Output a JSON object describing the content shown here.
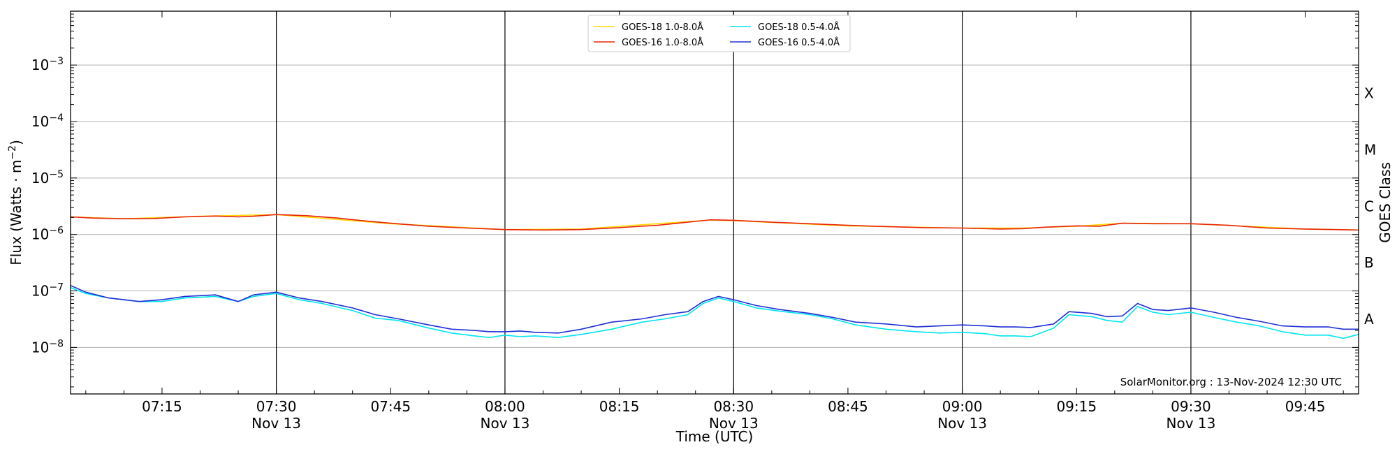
{
  "chart_data": {
    "type": "line",
    "xlabel": "Time (UTC)",
    "ylabel": "Flux (Watts · m",
    "ylabel_sup": "−2",
    "ylabel_close": ")",
    "right_label": "GOES Class",
    "credit": "SolarMonitor.org : 13-Nov-2024 12:30 UTC",
    "y_scale": "log",
    "ylim": [
      1.5e-09,
      0.009
    ],
    "xlim": [
      "07:03",
      "09:52"
    ],
    "grid": "horizontal",
    "legend_position": "top-center",
    "y_ticks": [
      {
        "value": 1e-08,
        "base": "10",
        "exp": "−8"
      },
      {
        "value": 1e-07,
        "base": "10",
        "exp": "−7"
      },
      {
        "value": 1e-06,
        "base": "10",
        "exp": "−6"
      },
      {
        "value": 1e-05,
        "base": "10",
        "exp": "−5"
      },
      {
        "value": 0.0001,
        "base": "10",
        "exp": "−4"
      },
      {
        "value": 0.001,
        "base": "10",
        "exp": "−3"
      }
    ],
    "x_ticks": [
      {
        "time": "07:15",
        "label": "07:15",
        "sublabel": ""
      },
      {
        "time": "07:30",
        "label": "07:30",
        "sublabel": "Nov 13"
      },
      {
        "time": "07:45",
        "label": "07:45",
        "sublabel": ""
      },
      {
        "time": "08:00",
        "label": "08:00",
        "sublabel": "Nov 13"
      },
      {
        "time": "08:15",
        "label": "08:15",
        "sublabel": ""
      },
      {
        "time": "08:30",
        "label": "08:30",
        "sublabel": "Nov 13"
      },
      {
        "time": "08:45",
        "label": "08:45",
        "sublabel": ""
      },
      {
        "time": "09:00",
        "label": "09:00",
        "sublabel": "Nov 13"
      },
      {
        "time": "09:15",
        "label": "09:15",
        "sublabel": ""
      },
      {
        "time": "09:30",
        "label": "09:30",
        "sublabel": "Nov 13"
      },
      {
        "time": "09:45",
        "label": "09:45",
        "sublabel": ""
      }
    ],
    "vlines": [
      "07:30",
      "08:00",
      "08:30",
      "09:00",
      "09:30"
    ],
    "goes_classes": [
      {
        "label": "A",
        "value": 3.16e-08
      },
      {
        "label": "B",
        "value": 3.16e-07
      },
      {
        "label": "C",
        "value": 3.16e-06
      },
      {
        "label": "M",
        "value": 3.16e-05
      },
      {
        "label": "X",
        "value": 0.000316
      }
    ],
    "series": [
      {
        "name": "GOES-18 1.0-8.0Å",
        "color": "#ffd700",
        "x": [
          "07:03",
          "07:10",
          "07:20",
          "07:30",
          "07:45",
          "08:00",
          "08:10",
          "08:20",
          "08:27",
          "08:30",
          "08:45",
          "09:00",
          "09:08",
          "09:15",
          "09:21",
          "09:30",
          "09:45",
          "09:52"
        ],
        "y": [
          2.05e-06,
          1.9e-06,
          2.1e-06,
          2.25e-06,
          1.55e-06,
          1.22e-06,
          1.25e-06,
          1.55e-06,
          1.8e-06,
          1.75e-06,
          1.42e-06,
          1.3e-06,
          1.3e-06,
          1.4e-06,
          1.58e-06,
          1.55e-06,
          1.25e-06,
          1.2e-06
        ]
      },
      {
        "name": "GOES-16 1.0-8.0Å",
        "color": "#e8250a",
        "x": [
          "07:03",
          "07:06",
          "07:10",
          "07:14",
          "07:18",
          "07:22",
          "07:25",
          "07:27",
          "07:30",
          "07:34",
          "07:38",
          "07:42",
          "07:45",
          "07:50",
          "07:55",
          "08:00",
          "08:05",
          "08:10",
          "08:15",
          "08:20",
          "08:24",
          "08:27",
          "08:30",
          "08:35",
          "08:40",
          "08:45",
          "08:50",
          "08:55",
          "09:00",
          "09:05",
          "09:08",
          "09:11",
          "09:15",
          "09:18",
          "09:21",
          "09:25",
          "09:30",
          "09:35",
          "09:40",
          "09:45",
          "09:52"
        ],
        "y": [
          2.05e-06,
          1.95e-06,
          1.9e-06,
          1.92e-06,
          2.05e-06,
          2.12e-06,
          2.05e-06,
          2.1e-06,
          2.25e-06,
          2.15e-06,
          1.95e-06,
          1.72e-06,
          1.58e-06,
          1.4e-06,
          1.3e-06,
          1.22e-06,
          1.2e-06,
          1.22e-06,
          1.32e-06,
          1.45e-06,
          1.65e-06,
          1.82e-06,
          1.78e-06,
          1.65e-06,
          1.55e-06,
          1.45e-06,
          1.38e-06,
          1.32e-06,
          1.3e-06,
          1.25e-06,
          1.27e-06,
          1.35e-06,
          1.42e-06,
          1.4e-06,
          1.58e-06,
          1.55e-06,
          1.55e-06,
          1.45e-06,
          1.3e-06,
          1.25e-06,
          1.2e-06
        ]
      },
      {
        "name": "GOES-18 0.5-4.0Å",
        "color": "#00e5ee",
        "x": [
          "07:03",
          "07:05",
          "07:08",
          "07:12",
          "07:15",
          "07:18",
          "07:22",
          "07:25",
          "07:27",
          "07:30",
          "07:33",
          "07:36",
          "07:40",
          "07:43",
          "07:46",
          "07:50",
          "07:53",
          "07:56",
          "07:58",
          "08:00",
          "08:02",
          "08:04",
          "08:07",
          "08:10",
          "08:14",
          "08:18",
          "08:21",
          "08:24",
          "08:26",
          "08:28",
          "08:30",
          "08:33",
          "08:36",
          "08:40",
          "08:43",
          "08:46",
          "08:50",
          "08:54",
          "08:57",
          "09:00",
          "09:03",
          "09:05",
          "09:07",
          "09:09",
          "09:12",
          "09:14",
          "09:17",
          "09:19",
          "09:21",
          "09:23",
          "09:25",
          "09:27",
          "09:30",
          "09:33",
          "09:36",
          "09:39",
          "09:42",
          "09:45",
          "09:48",
          "09:50",
          "09:52"
        ],
        "y": [
          1.15e-07,
          9e-08,
          7.5e-08,
          6.5e-08,
          6.5e-08,
          7.5e-08,
          8e-08,
          6.5e-08,
          8e-08,
          9e-08,
          7e-08,
          6e-08,
          4.5e-08,
          3.3e-08,
          3e-08,
          2.2e-08,
          1.8e-08,
          1.6e-08,
          1.5e-08,
          1.65e-08,
          1.55e-08,
          1.6e-08,
          1.5e-08,
          1.7e-08,
          2.1e-08,
          2.8e-08,
          3.2e-08,
          3.8e-08,
          6e-08,
          7.5e-08,
          6.5e-08,
          5e-08,
          4.4e-08,
          3.8e-08,
          3.2e-08,
          2.5e-08,
          2.1e-08,
          1.9e-08,
          1.8e-08,
          1.85e-08,
          1.75e-08,
          1.6e-08,
          1.6e-08,
          1.55e-08,
          2.2e-08,
          3.8e-08,
          3.5e-08,
          3e-08,
          2.8e-08,
          5.3e-08,
          4.2e-08,
          3.8e-08,
          4.2e-08,
          3.4e-08,
          2.8e-08,
          2.4e-08,
          1.9e-08,
          1.65e-08,
          1.65e-08,
          1.45e-08,
          1.7e-08
        ]
      },
      {
        "name": "GOES-16 0.5-4.0Å",
        "color": "#1f2fd6",
        "x": [
          "07:03",
          "07:05",
          "07:08",
          "07:12",
          "07:15",
          "07:18",
          "07:22",
          "07:25",
          "07:27",
          "07:30",
          "07:33",
          "07:36",
          "07:40",
          "07:43",
          "07:46",
          "07:50",
          "07:53",
          "07:56",
          "07:58",
          "08:00",
          "08:02",
          "08:04",
          "08:07",
          "08:10",
          "08:14",
          "08:18",
          "08:21",
          "08:24",
          "08:26",
          "08:28",
          "08:30",
          "08:33",
          "08:36",
          "08:40",
          "08:43",
          "08:46",
          "08:50",
          "08:54",
          "08:57",
          "09:00",
          "09:03",
          "09:05",
          "09:07",
          "09:09",
          "09:12",
          "09:14",
          "09:17",
          "09:19",
          "09:21",
          "09:23",
          "09:25",
          "09:27",
          "09:30",
          "09:33",
          "09:36",
          "09:39",
          "09:42",
          "09:45",
          "09:48",
          "09:50",
          "09:52"
        ],
        "y": [
          1.25e-07,
          9.5e-08,
          7.5e-08,
          6.5e-08,
          7e-08,
          8e-08,
          8.5e-08,
          6.5e-08,
          8.5e-08,
          9.5e-08,
          7.5e-08,
          6.5e-08,
          5e-08,
          3.8e-08,
          3.2e-08,
          2.5e-08,
          2.1e-08,
          2e-08,
          1.9e-08,
          1.9e-08,
          1.95e-08,
          1.85e-08,
          1.8e-08,
          2.1e-08,
          2.8e-08,
          3.2e-08,
          3.8e-08,
          4.3e-08,
          6.5e-08,
          8e-08,
          7e-08,
          5.5e-08,
          4.7e-08,
          4e-08,
          3.4e-08,
          2.8e-08,
          2.6e-08,
          2.3e-08,
          2.4e-08,
          2.5e-08,
          2.4e-08,
          2.3e-08,
          2.3e-08,
          2.25e-08,
          2.6e-08,
          4.3e-08,
          4e-08,
          3.5e-08,
          3.6e-08,
          6e-08,
          4.7e-08,
          4.5e-08,
          5e-08,
          4.2e-08,
          3.4e-08,
          2.9e-08,
          2.4e-08,
          2.3e-08,
          2.3e-08,
          2.1e-08,
          2.1e-08
        ]
      }
    ]
  }
}
